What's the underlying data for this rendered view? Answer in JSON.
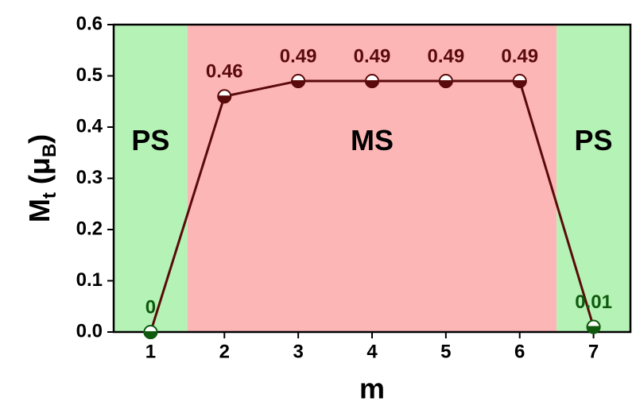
{
  "chart_data": {
    "type": "line",
    "xlabel": "m",
    "ylabel": [
      {
        "text": "M"
      },
      {
        "text": "t",
        "sub": true
      },
      {
        "text": " (μ"
      },
      {
        "text": "B",
        "sub": true
      },
      {
        "text": ")"
      }
    ],
    "x": [
      1,
      2,
      3,
      4,
      5,
      6,
      7
    ],
    "series": [
      {
        "color": "#5a0a0a",
        "values": [
          0,
          0.46,
          0.49,
          0.49,
          0.49,
          0.49,
          0.01
        ],
        "point_colors": [
          "#0f5a0f",
          "#5a0a0a",
          "#5a0a0a",
          "#5a0a0a",
          "#5a0a0a",
          "#5a0a0a",
          "#0f5a0f"
        ]
      }
    ],
    "regions": [
      {
        "label": "PS",
        "range": [
          0.5,
          1.5
        ],
        "color": "#b5f2b5"
      },
      {
        "label": "MS",
        "range": [
          1.5,
          6.5
        ],
        "color": "#fdb6b6"
      },
      {
        "label": "PS",
        "range": [
          6.5,
          7.5
        ],
        "color": "#b5f2b5"
      }
    ],
    "xlim": [
      0.5,
      7.5
    ],
    "xticks": [
      1,
      2,
      3,
      4,
      5,
      6,
      7
    ],
    "ylim": [
      0,
      0.6
    ],
    "yticks": [
      {
        "value": 0,
        "label": "0.0"
      },
      0.1,
      0.2,
      0.3,
      0.4,
      0.5,
      0.6
    ]
  }
}
